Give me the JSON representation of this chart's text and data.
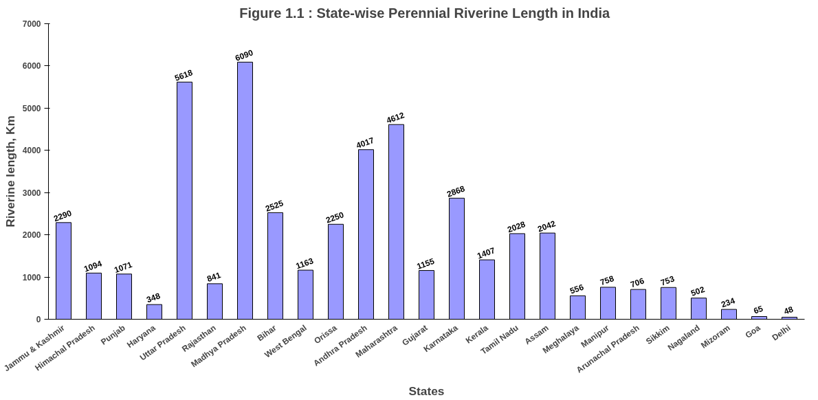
{
  "chart_data": {
    "type": "bar",
    "title": "Figure 1.1 :  State-wise Perennial Riverine Length in India",
    "xlabel": "States",
    "ylabel": "Riverine length, Km",
    "categories": [
      "Jammu & Kashmir",
      "Himachal Pradesh",
      "Punjab",
      "Haryana",
      "Uttar Pradesh",
      "Rajasthan",
      "Madhya Pradesh",
      "Bihar",
      "West Bengal",
      "Orissa",
      "Andhra Pradesh",
      "Maharashtra",
      "Gujarat",
      "Karnataka",
      "Kerala",
      "Tamil Nadu",
      "Assam",
      "Meghalaya",
      "Manipur",
      "Arunachal Pradesh",
      "Sikkim",
      "Nagaland",
      "Mizoram",
      "Goa",
      "Delhi"
    ],
    "values": [
      2290,
      1094,
      1071,
      348,
      5618,
      841,
      6090,
      2525,
      1163,
      2250,
      4017,
      4612,
      1155,
      2868,
      1407,
      2028,
      2042,
      556,
      758,
      706,
      753,
      502,
      234,
      65,
      48
    ],
    "color": "#9999ff",
    "ylim": [
      0,
      7000
    ],
    "yticks": [
      0,
      1000,
      2000,
      3000,
      4000,
      5000,
      6000,
      7000
    ],
    "grid": false,
    "data_labels": true
  }
}
